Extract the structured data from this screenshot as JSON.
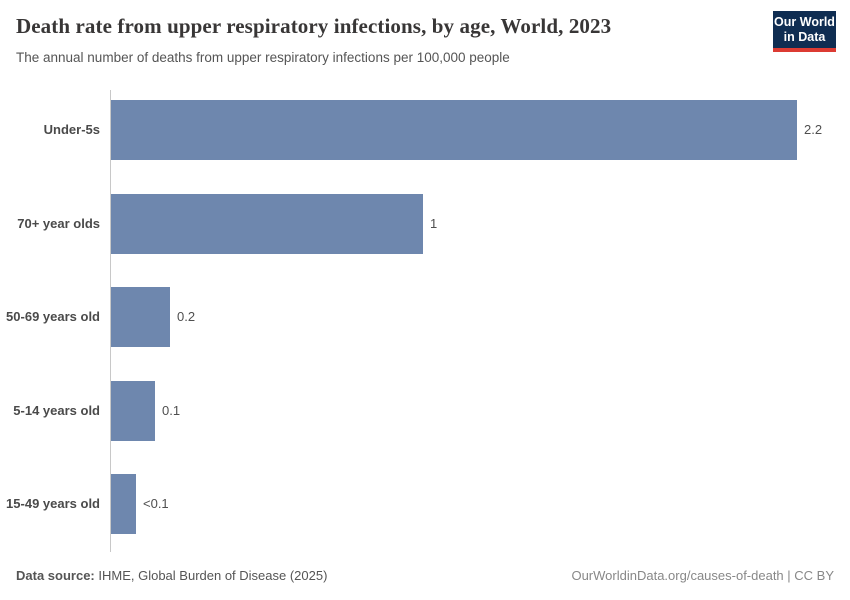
{
  "header": {
    "title": "Death rate from upper respiratory infections, by age, World, 2023",
    "subtitle": "The annual number of deaths from upper respiratory infections per 100,000 people"
  },
  "logo": {
    "line1": "Our World",
    "line2": "in Data",
    "bg_color": "#0f2d52",
    "accent_color": "#dc3b33"
  },
  "chart_data": {
    "type": "bar",
    "orientation": "horizontal",
    "title": "Death rate from upper respiratory infections, by age, World, 2023",
    "subtitle": "The annual number of deaths from upper respiratory infections per 100,000 people",
    "categories": [
      "Under-5s",
      "70+ year olds",
      "50-69 years old",
      "5-14 years old",
      "15-49 years old"
    ],
    "values": [
      2.2,
      1.0,
      0.19,
      0.14,
      0.08
    ],
    "value_labels": [
      "2.2",
      "1",
      "0.2",
      "0.1",
      "<0.1"
    ],
    "xlabel": "",
    "ylabel": "",
    "xlim": [
      0,
      2.32
    ],
    "grid": false,
    "legend": "none",
    "bar_color": "#6e87ae"
  },
  "footer": {
    "source_label": "Data source:",
    "source_text": "IHME, Global Burden of Disease (2025)",
    "credit": "OurWorldinData.org/causes-of-death | CC BY"
  }
}
